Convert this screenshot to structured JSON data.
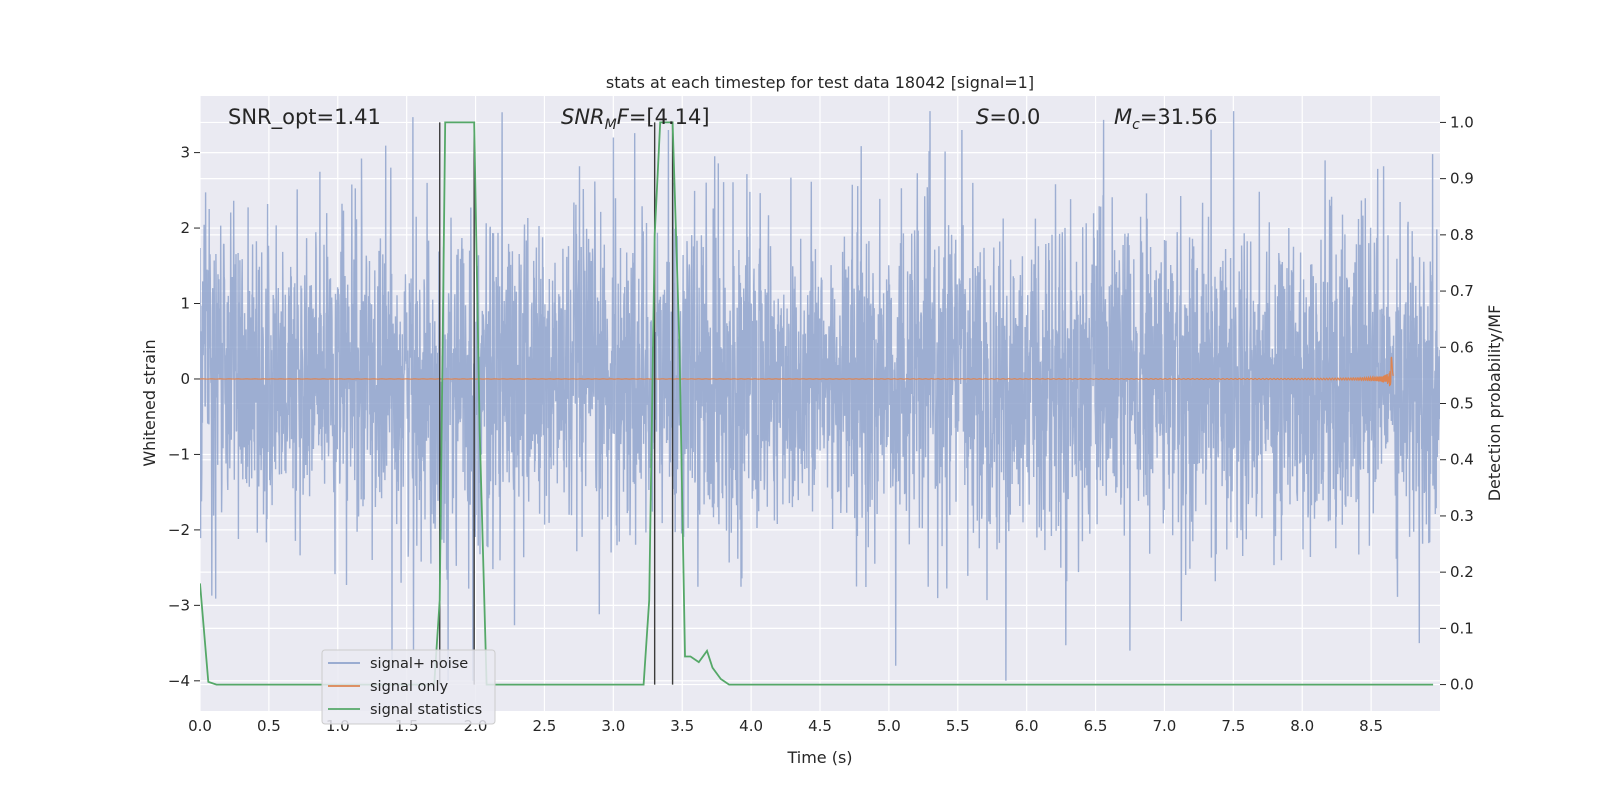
{
  "chart_data": {
    "type": "line",
    "title": "stats at each timestep for test data 18042 [signal=1]",
    "xlabel": "Time (s)",
    "ylabel": "Whitened strain",
    "y2label": "Detection probability/MF",
    "xlim": [
      0.0,
      9.0
    ],
    "ylim": [
      -4.4,
      3.75
    ],
    "y2lim": [
      -0.047,
      1.047
    ],
    "grid": true,
    "legend_position": "lower-left",
    "x_ticks": [
      "0.0",
      "0.5",
      "1.0",
      "1.5",
      "2.0",
      "2.5",
      "3.0",
      "3.5",
      "4.0",
      "4.5",
      "5.0",
      "5.5",
      "6.0",
      "6.5",
      "7.0",
      "7.5",
      "8.0",
      "8.5"
    ],
    "y_ticks": [
      "3",
      "2",
      "1",
      "0",
      "−1",
      "−2",
      "−3",
      "−4"
    ],
    "y2_ticks": [
      "1.0",
      "0.9",
      "0.8",
      "0.7",
      "0.6",
      "0.5",
      "0.4",
      "0.3",
      "0.2",
      "0.1",
      "0.0"
    ],
    "annotations": [
      {
        "id": "snr_opt",
        "text": "SNR_opt=1.41"
      },
      {
        "id": "snr_mf",
        "text": "=[4.14]",
        "math_base": "SNR",
        "math_sub": "M",
        "math_tail": "F"
      },
      {
        "id": "s",
        "text": "=0.0",
        "math_base": "S"
      },
      {
        "id": "mc",
        "text": "=31.56",
        "math_base": "M",
        "math_sub": "c"
      }
    ],
    "vertical_lines_x": [
      1.74,
      1.99,
      3.3,
      3.43
    ],
    "series": [
      {
        "name": "signal+ noise",
        "color": "#8fa3cc",
        "kind": "noise",
        "x_range": [
          0.0,
          9.0
        ],
        "y_typical_range": [
          -2.7,
          2.7
        ],
        "notable_points": [
          {
            "x": 1.55,
            "y": -3.6
          },
          {
            "x": 1.8,
            "y": -4.0
          },
          {
            "x": 1.98,
            "y": -4.0
          },
          {
            "x": 3.0,
            "y": 3.2
          },
          {
            "x": 3.4,
            "y": 3.3
          },
          {
            "x": 5.05,
            "y": -3.8
          },
          {
            "x": 5.85,
            "y": -4.0
          },
          {
            "x": 5.53,
            "y": 3.3
          },
          {
            "x": 6.75,
            "y": -3.6
          },
          {
            "x": 8.85,
            "y": -3.5
          }
        ]
      },
      {
        "name": "signal only",
        "color": "#dd8452",
        "kind": "chirp",
        "x_range": [
          0.0,
          8.66
        ],
        "y_peak": 0.3,
        "peak_x": 8.65
      },
      {
        "name": "signal statistics",
        "color": "#55a868",
        "axis": "right",
        "x": [
          0.0,
          0.06,
          0.12,
          1.7,
          1.74,
          1.78,
          1.82,
          1.95,
          1.99,
          2.03,
          2.08,
          2.12,
          3.22,
          3.26,
          3.3,
          3.34,
          3.38,
          3.43,
          3.48,
          3.52,
          3.56,
          3.62,
          3.68,
          3.72,
          3.78,
          3.84,
          3.9,
          3.95,
          8.95
        ],
        "values": [
          0.18,
          0.005,
          0.0,
          0.0,
          0.15,
          1.0,
          1.0,
          1.0,
          1.0,
          0.45,
          0.0,
          0.0,
          0.0,
          0.15,
          0.8,
          1.0,
          1.0,
          1.0,
          0.6,
          0.05,
          0.05,
          0.04,
          0.06,
          0.03,
          0.01,
          0.0,
          0.0,
          0.0,
          0.0
        ]
      }
    ]
  }
}
